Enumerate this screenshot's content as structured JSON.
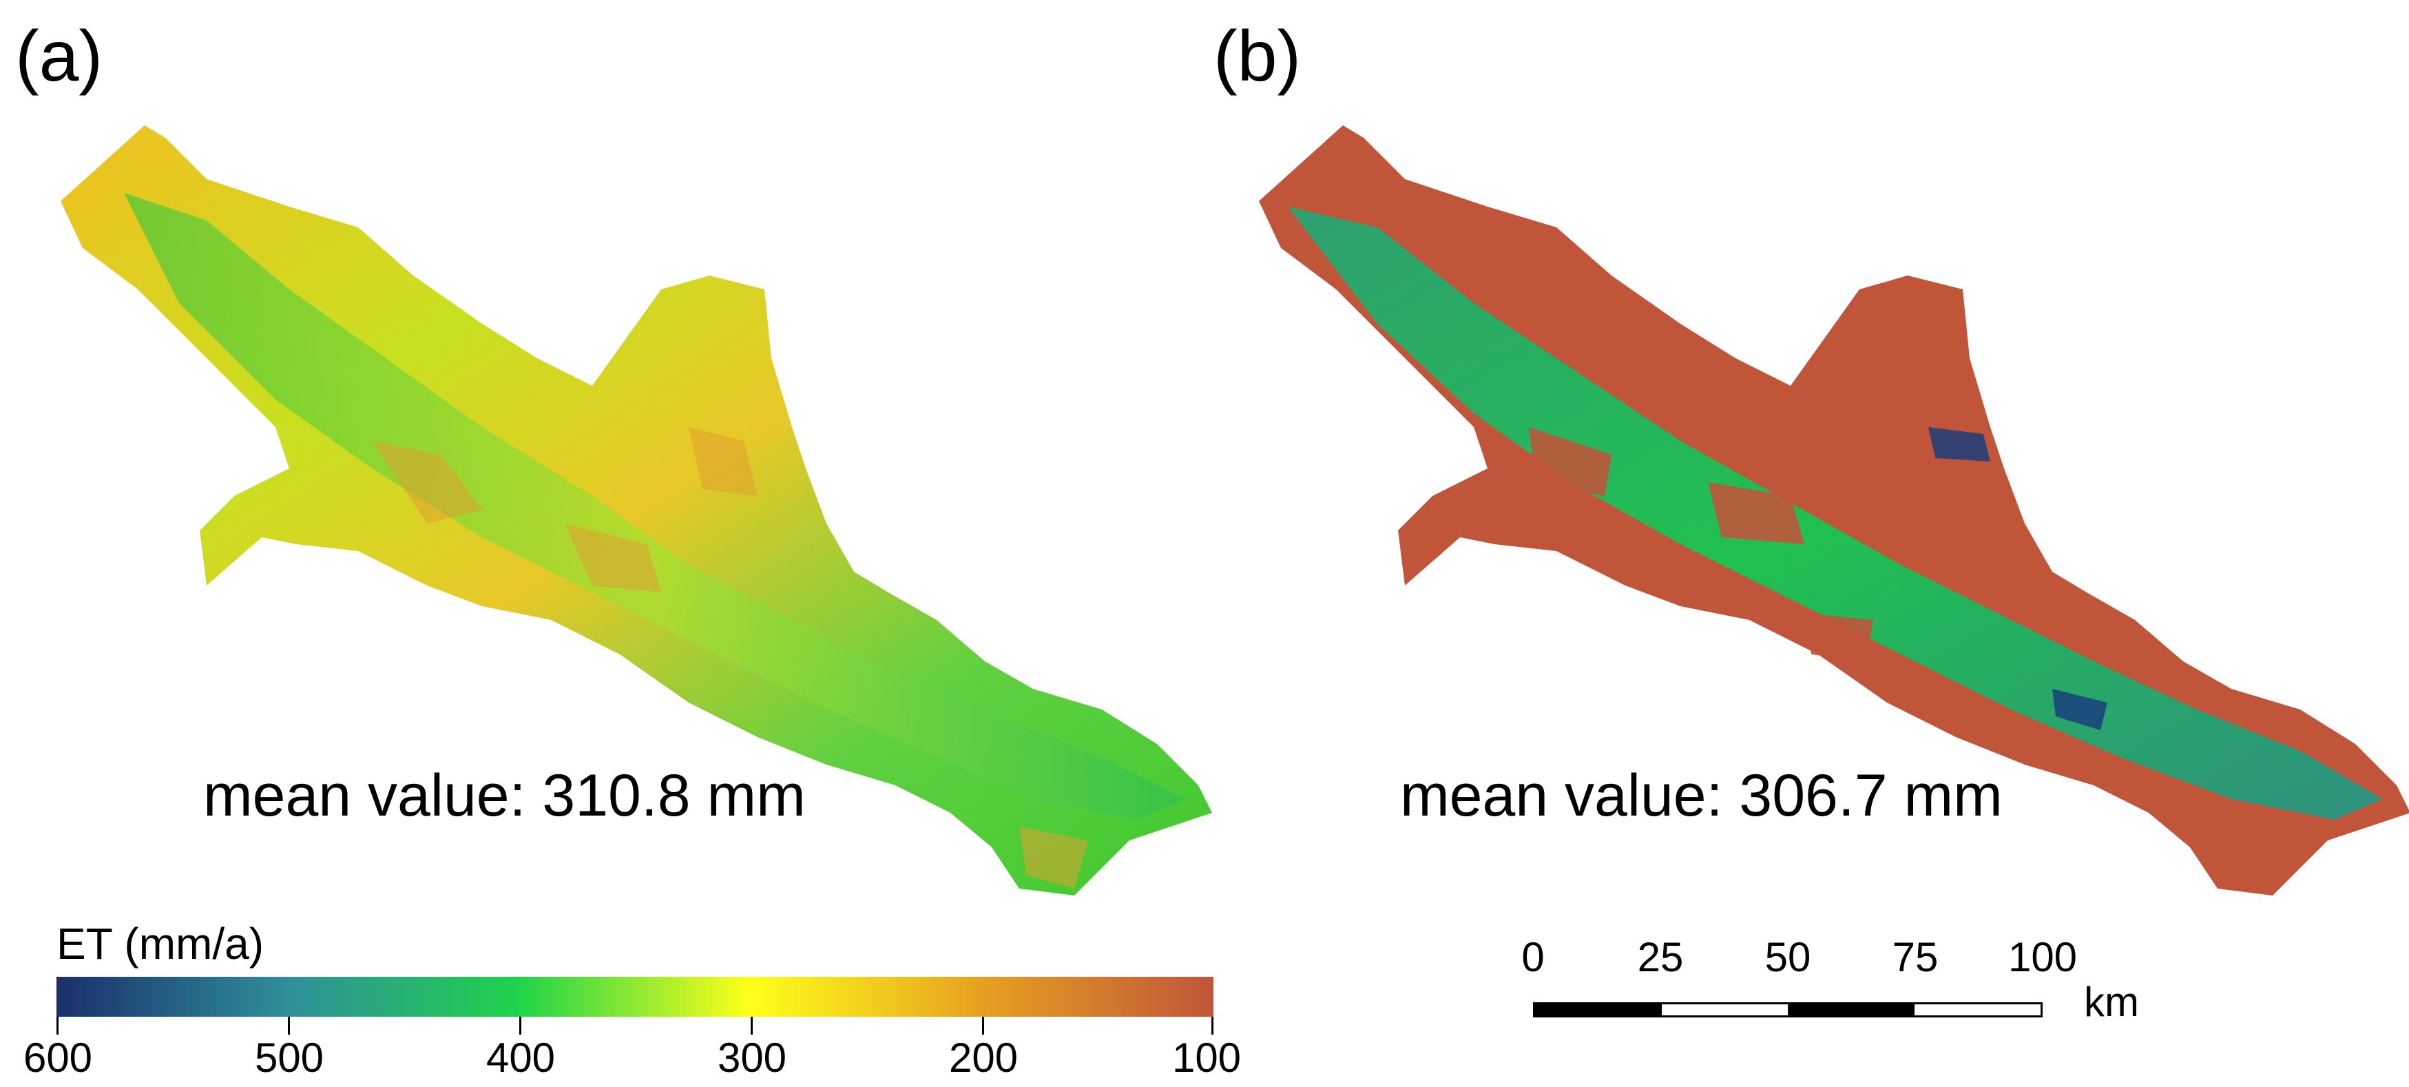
{
  "panels": [
    {
      "label": "(a)",
      "mean_text": "mean value: 310.8 mm"
    },
    {
      "label": "(b)",
      "mean_text": "mean value: 306.7 mm"
    }
  ],
  "legend": {
    "title": "ET (mm/a)",
    "ticks": [
      "600",
      "500",
      "400",
      "300",
      "200",
      "100"
    ],
    "colors": [
      "#1a2f6b",
      "#2f8f9a",
      "#1fd34a",
      "#ffff1a",
      "#e6a020",
      "#c0553a"
    ]
  },
  "scale_bar": {
    "labels": [
      "0",
      "25",
      "50",
      "75",
      "100"
    ],
    "unit": "km"
  }
}
